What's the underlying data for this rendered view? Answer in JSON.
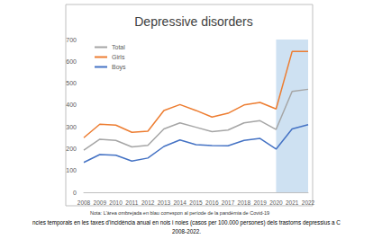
{
  "chart_data": {
    "type": "line",
    "title": "Depressive disorders",
    "categories": [
      "2008",
      "2009",
      "2010",
      "2011",
      "2012",
      "2013",
      "2014",
      "2015",
      "2016",
      "2017",
      "2018",
      "2019",
      "2020",
      "2021",
      "2022"
    ],
    "series": [
      {
        "name": "Total",
        "color": "#a5a5a5",
        "values": [
          193,
          243,
          238,
          208,
          215,
          290,
          318,
          298,
          278,
          285,
          318,
          328,
          288,
          462,
          472
        ]
      },
      {
        "name": "Girls",
        "color": "#ed7d31",
        "values": [
          250,
          312,
          308,
          275,
          280,
          375,
          402,
          375,
          345,
          362,
          400,
          412,
          382,
          645,
          645
        ]
      },
      {
        "name": "Boys",
        "color": "#4472c4",
        "values": [
          137,
          173,
          170,
          143,
          157,
          210,
          240,
          218,
          214,
          213,
          238,
          247,
          198,
          290,
          310
        ]
      }
    ],
    "highlight": {
      "from": "2020",
      "to": "2022"
    },
    "ylim": [
      0,
      700
    ],
    "yticks": [
      0,
      100,
      200,
      300,
      400,
      500,
      600,
      700
    ],
    "grid": false,
    "legend": "upper left",
    "note": "Nota: L'àrea ombrejada en blau correspon al període de la pandèmia de Covid-19",
    "caption": [
      "ncies temporals en les taxes d'incidència anual en nois i noies (casos per 100.000 persones) dels trastorns depressius a C",
      "2008-2022."
    ]
  }
}
